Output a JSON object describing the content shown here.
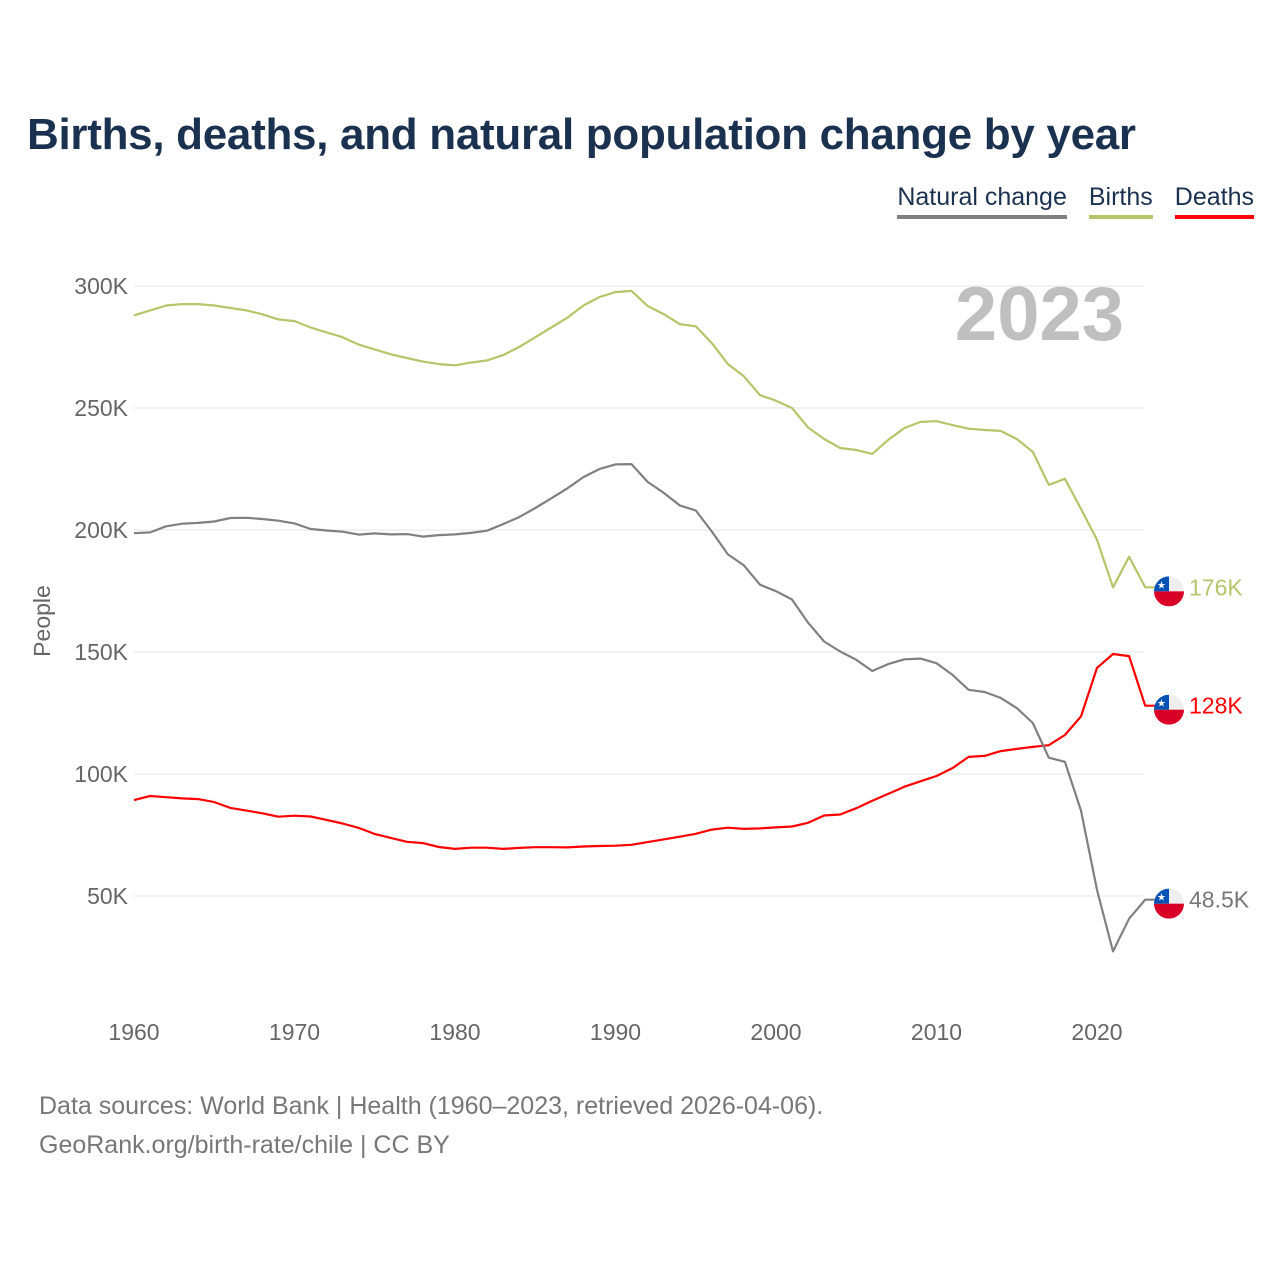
{
  "chart_data": {
    "type": "line",
    "title": "Births, deaths, and natural population change by year",
    "xlabel": "",
    "ylabel": "People",
    "xlim": [
      1960,
      2023
    ],
    "ylim": [
      0,
      300000
    ],
    "y_ticks": [
      50000,
      100000,
      150000,
      200000,
      250000,
      300000
    ],
    "y_tick_labels": [
      "50K",
      "100K",
      "150K",
      "200K",
      "250K",
      "300K"
    ],
    "x_ticks": [
      1960,
      1970,
      1980,
      1990,
      2000,
      2010,
      2020
    ],
    "x_tick_labels": [
      "1960",
      "1970",
      "1980",
      "1990",
      "2000",
      "2010",
      "2020"
    ],
    "grid": true,
    "legend_position": "top-right",
    "year_watermark": "2023",
    "x": [
      1960,
      1961,
      1962,
      1963,
      1964,
      1965,
      1966,
      1967,
      1968,
      1969,
      1970,
      1971,
      1972,
      1973,
      1974,
      1975,
      1976,
      1977,
      1978,
      1979,
      1980,
      1981,
      1982,
      1983,
      1984,
      1985,
      1986,
      1987,
      1988,
      1989,
      1990,
      1991,
      1992,
      1993,
      1994,
      1995,
      1996,
      1997,
      1998,
      1999,
      2000,
      2001,
      2002,
      2003,
      2004,
      2005,
      2006,
      2007,
      2008,
      2009,
      2010,
      2011,
      2012,
      2013,
      2014,
      2015,
      2016,
      2017,
      2018,
      2019,
      2020,
      2021,
      2022,
      2023
    ],
    "series": [
      {
        "name": "Natural change",
        "color": "#808080",
        "end_label": "48.5K",
        "values": [
          198.7,
          199.0,
          201.5,
          202.6,
          202.9,
          203.5,
          204.9,
          205.0,
          204.5,
          203.8,
          202.7,
          200.4,
          199.8,
          199.3,
          198.1,
          198.6,
          198.2,
          198.3,
          197.3,
          197.9,
          198.2,
          198.8,
          199.7,
          202.4,
          205.3,
          209.0,
          213.0,
          217.1,
          221.7,
          225.0,
          226.9,
          227.0,
          219.7,
          215.3,
          210.1,
          208.0,
          199.4,
          190.0,
          185.5,
          177.6,
          174.9,
          171.5,
          162.0,
          154.3,
          150.2,
          146.8,
          142.2,
          145.1,
          147.0,
          147.3,
          145.4,
          140.6,
          134.5,
          133.6,
          131.2,
          127.0,
          120.9,
          106.7,
          105.0,
          85.0,
          52.5,
          27.3,
          40.7,
          48.5
        ]
      },
      {
        "name": "Births",
        "color": "#b5c56a",
        "end_label": "176K",
        "values": [
          288.0,
          290.0,
          292.0,
          292.6,
          292.6,
          292.0,
          291.0,
          290.0,
          288.4,
          286.3,
          285.6,
          283.0,
          281.0,
          279.0,
          276.0,
          274.0,
          272.0,
          270.5,
          269.0,
          268.0,
          267.5,
          268.6,
          269.5,
          271.7,
          275.0,
          279.0,
          283.0,
          287.0,
          292.0,
          295.5,
          297.5,
          298.0,
          291.8,
          288.5,
          284.4,
          283.5,
          276.6,
          268.0,
          263.0,
          255.3,
          253.0,
          250.0,
          242.0,
          237.3,
          233.6,
          232.8,
          231.2,
          237.0,
          241.8,
          244.3,
          244.6,
          243.0,
          241.5,
          241.0,
          240.6,
          237.3,
          232.0,
          218.5,
          221.0,
          208.6,
          196.0,
          176.5,
          189.0,
          176.5
        ]
      },
      {
        "name": "Deaths",
        "color": "#ff0000",
        "end_label": "128K",
        "values": [
          89.3,
          91.0,
          90.5,
          90.0,
          89.7,
          88.5,
          86.1,
          85.0,
          83.9,
          82.5,
          82.9,
          82.6,
          81.2,
          79.7,
          77.9,
          75.4,
          73.8,
          72.2,
          71.7,
          70.1,
          69.3,
          69.8,
          69.8,
          69.3,
          69.7,
          70.0,
          70.0,
          69.9,
          70.3,
          70.5,
          70.6,
          71.0,
          72.1,
          73.2,
          74.3,
          75.5,
          77.2,
          78.0,
          77.5,
          77.7,
          78.1,
          78.5,
          80.0,
          83.0,
          83.4,
          86.0,
          89.0,
          91.9,
          94.8,
          97.0,
          99.2,
          102.4,
          107.0,
          107.4,
          109.4,
          110.3,
          111.1,
          111.8,
          116.0,
          123.6,
          143.5,
          149.2,
          148.3,
          128.0
        ]
      }
    ],
    "value_unit": "thousands of people"
  },
  "legend": [
    "Natural change",
    "Births",
    "Deaths"
  ],
  "footer": {
    "sources": "Data sources: World Bank | Health (1960–2023, retrieved 2026-04-06).",
    "credit": "GeoRank.org/birth-rate/chile | CC BY"
  }
}
